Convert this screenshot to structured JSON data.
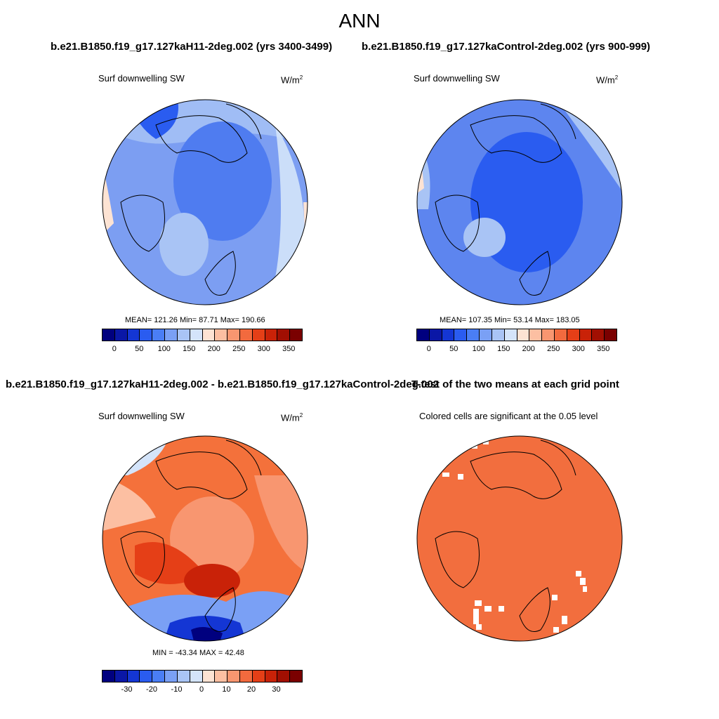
{
  "title": "ANN",
  "panels": {
    "test": {
      "heading": "b.e21.B1850.f19_g17.127kaH11-2deg.002 (yrs 3400-3499)",
      "variable": "Surf downwelling SW",
      "units_base": "W/m",
      "units_exp": "2",
      "stats": "MEAN= 121.26  Min=  87.71  Max= 190.66"
    },
    "control": {
      "heading": "b.e21.B1850.f19_g17.127kaControl-2deg.002 (yrs 900-999)",
      "variable": "Surf downwelling SW",
      "units_base": "W/m",
      "units_exp": "2",
      "stats": "MEAN= 107.35  Min=  53.14  Max= 183.05"
    },
    "difference": {
      "heading": "b.e21.B1850.f19_g17.127kaH11-2deg.002 - b.e21.B1850.f19_g17.127kaControl-2deg.002",
      "variable": "Surf downwelling SW",
      "units_base": "W/m",
      "units_exp": "2",
      "stats": "MIN = -43.34 MAX =  42.48"
    },
    "ttest": {
      "heading": "T-test of the two means at each grid point",
      "note": "Colored cells are significant at the 0.05 level"
    }
  },
  "colorbars": {
    "abs_ticks": [
      "0",
      "50",
      "100",
      "150",
      "200",
      "250",
      "300",
      "350"
    ],
    "diff_ticks": [
      "-30",
      "-20",
      "-10",
      "0",
      "10",
      "20",
      "30"
    ],
    "colors": [
      "#00007f",
      "#0a17a6",
      "#1436d4",
      "#2a5cf0",
      "#4a7ef5",
      "#7aa0f5",
      "#a9c4f5",
      "#d4e4fa",
      "#fde3d3",
      "#fcbfa2",
      "#f89670",
      "#f26a3e",
      "#e53f17",
      "#c92208",
      "#a10f02",
      "#7a0000"
    ]
  },
  "map_colors": {
    "ocean_test": "#7c9ef2",
    "ocean_control": "#5d85ef",
    "diff_base": "#f4713b",
    "sig": "#f26e3e"
  }
}
